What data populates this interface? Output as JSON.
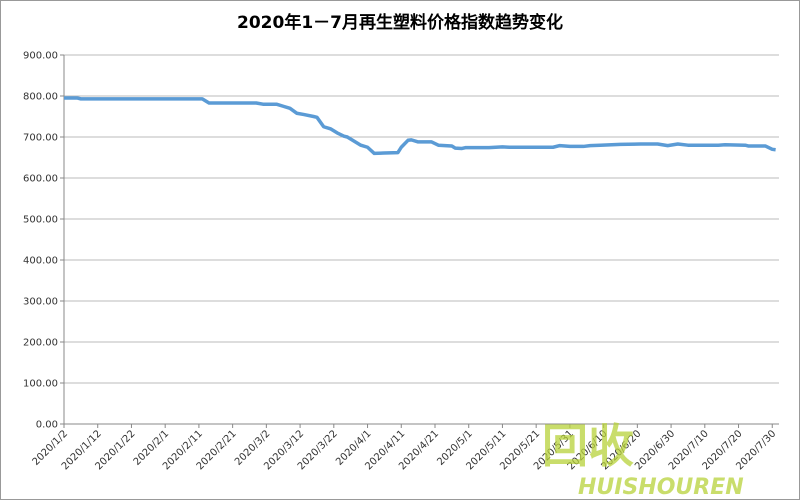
{
  "chart_data": {
    "type": "line",
    "title": "2020年1－7月再生塑料价格指数趋势变化",
    "x": [
      "2020/1/2",
      "2020/1/6",
      "2020/1/7",
      "2020/2/12",
      "2020/2/14",
      "2020/2/28",
      "2020/3/1",
      "2020/3/5",
      "2020/3/7",
      "2020/3/9",
      "2020/3/11",
      "2020/3/13",
      "2020/3/16",
      "2020/3/17",
      "2020/3/19",
      "2020/3/21",
      "2020/3/23",
      "2020/3/25",
      "2020/3/26",
      "2020/3/28",
      "2020/3/30",
      "2020/4/1",
      "2020/4/3",
      "2020/4/6",
      "2020/4/10",
      "2020/4/11",
      "2020/4/13",
      "2020/4/14",
      "2020/4/16",
      "2020/4/20",
      "2020/4/22",
      "2020/4/26",
      "2020/4/27",
      "2020/4/29",
      "2020/4/30",
      "2020/5/7",
      "2020/5/11",
      "2020/5/13",
      "2020/5/26",
      "2020/5/28",
      "2020/5/31",
      "2020/6/4",
      "2020/6/6",
      "2020/6/9",
      "2020/6/15",
      "2020/6/21",
      "2020/6/26",
      "2020/6/29",
      "2020/7/2",
      "2020/7/5",
      "2020/7/14",
      "2020/7/16",
      "2020/7/22",
      "2020/7/23",
      "2020/7/28",
      "2020/7/30",
      "2020/7/31"
    ],
    "series": [
      {
        "name": "再生塑料价格指数",
        "color": "#5b9bd5",
        "values": [
          795,
          795,
          793,
          793,
          783,
          783,
          780,
          780,
          775,
          770,
          758,
          755,
          750,
          748,
          725,
          720,
          710,
          702,
          700,
          690,
          680,
          675,
          660,
          661,
          662,
          675,
          692,
          693,
          688,
          688,
          680,
          678,
          673,
          672,
          674,
          674,
          676,
          675,
          675,
          679,
          677,
          677,
          679,
          680,
          682,
          683,
          683,
          679,
          683,
          680,
          680,
          681,
          680,
          678,
          678,
          670,
          669
        ]
      }
    ],
    "xlim": [
      "2020/1/2",
      "2020/8/1"
    ],
    "xticks": [
      "2020/1/2",
      "2020/1/12",
      "2020/1/22",
      "2020/2/1",
      "2020/2/11",
      "2020/2/21",
      "2020/3/2",
      "2020/3/12",
      "2020/3/22",
      "2020/4/1",
      "2020/4/11",
      "2020/4/21",
      "2020/5/1",
      "2020/5/11",
      "2020/5/21",
      "2020/5/31",
      "2020/6/10",
      "2020/6/20",
      "2020/6/30",
      "2020/7/10",
      "2020/7/20",
      "2020/7/30"
    ],
    "ylim": [
      0,
      900
    ],
    "yticks": [
      {
        "value": 0,
        "label": "0.00"
      },
      {
        "value": 100,
        "label": "100.00"
      },
      {
        "value": 200,
        "label": "200.00"
      },
      {
        "value": 300,
        "label": "300.00"
      },
      {
        "value": 400,
        "label": "400.00"
      },
      {
        "value": 500,
        "label": "500.00"
      },
      {
        "value": 600,
        "label": "600.00"
      },
      {
        "value": 700,
        "label": "700.00"
      },
      {
        "value": 800,
        "label": "800.00"
      },
      {
        "value": 900,
        "label": "900.00"
      }
    ],
    "grid": true,
    "watermark": {
      "logo": "回收",
      "text": "HUISHOUREN"
    }
  }
}
